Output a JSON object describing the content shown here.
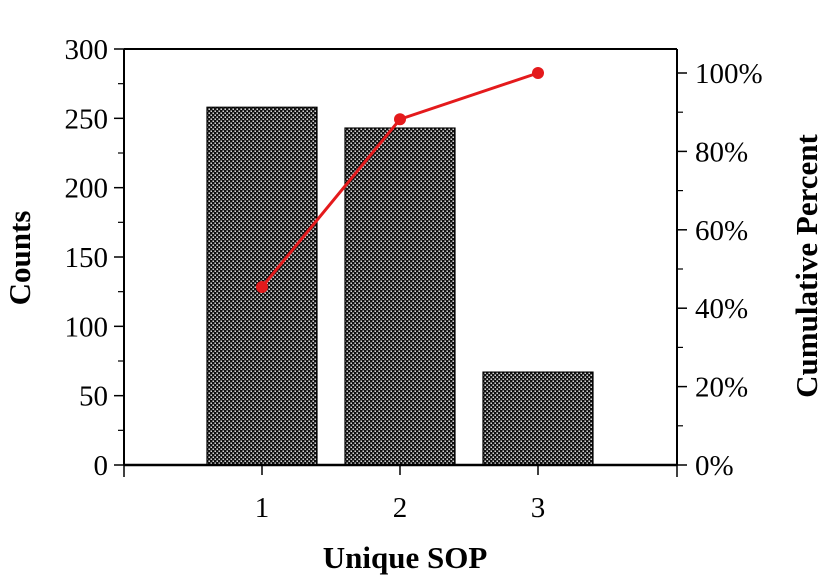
{
  "chart_data": {
    "type": "bar",
    "title": "",
    "xlabel": "Unique SOP",
    "ylabel": "Counts",
    "y2label": "Cumulative Percent",
    "categories": [
      "1",
      "2",
      "3"
    ],
    "values": [
      258,
      243,
      67
    ],
    "cumulative_percent": [
      45.4,
      88.2,
      100
    ],
    "ylim": [
      0,
      300
    ],
    "y2lim": [
      0,
      100
    ],
    "yticks": [
      "0",
      "50",
      "100",
      "150",
      "200",
      "250",
      "300"
    ],
    "y2ticks": [
      "0%",
      "20%",
      "40%",
      "60%",
      "80%",
      "100%"
    ],
    "bar_pattern": "black-dotted",
    "line_color": "#e41a1c",
    "grid": false,
    "legend": "none"
  }
}
